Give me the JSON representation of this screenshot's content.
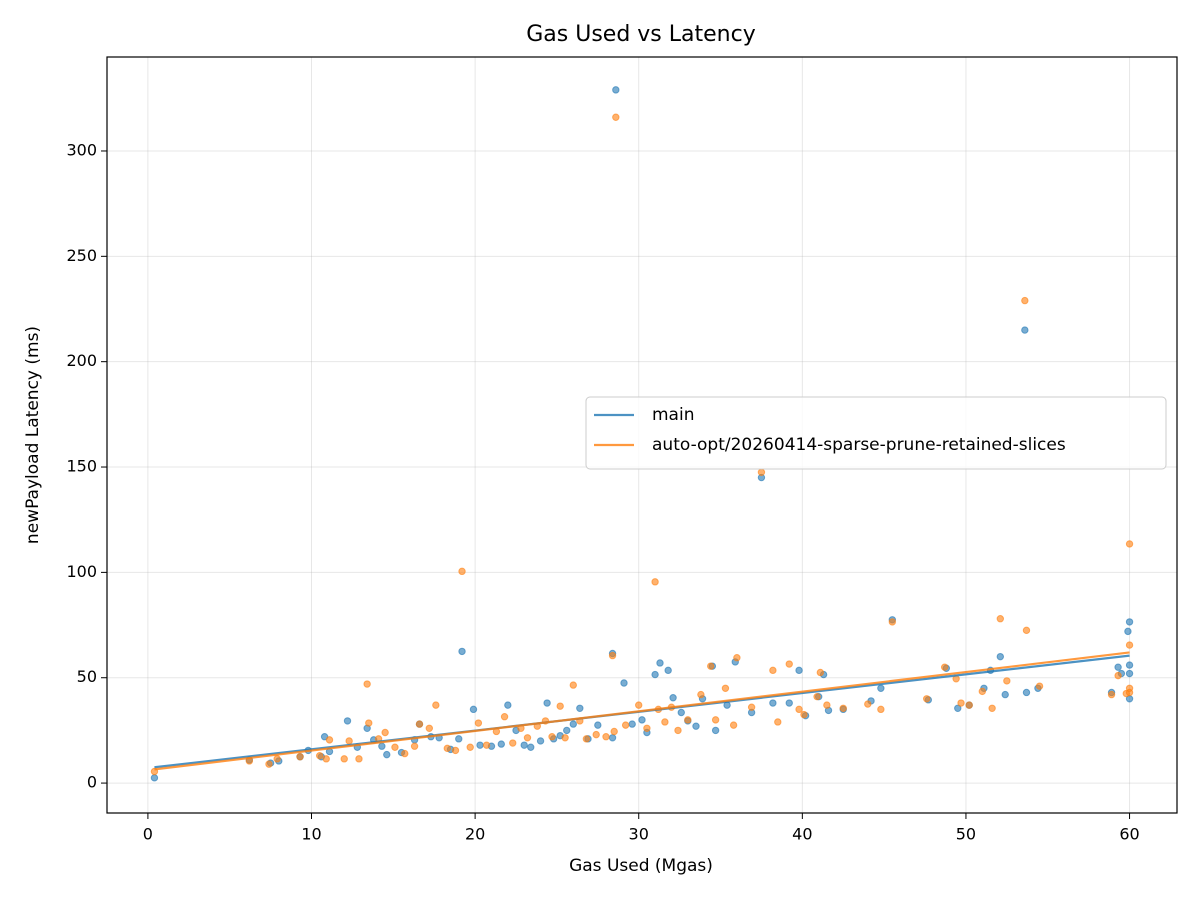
{
  "chart_data": {
    "type": "scatter",
    "title": "Gas Used vs Latency",
    "x_label": "Gas Used (Mgas)",
    "y_label": "newPayload Latency (ms)",
    "xlim": [
      -2.5,
      62.9
    ],
    "ylim": [
      -14.2,
      344.6
    ],
    "xticks": [
      0,
      10,
      20,
      30,
      40,
      50,
      60
    ],
    "yticks": [
      0,
      50,
      100,
      150,
      200,
      250,
      300
    ],
    "grid": true,
    "legend": "center right",
    "series": [
      {
        "name": "main",
        "color": "#1f77b4",
        "x": [
          0.4,
          6.2,
          7.5,
          8,
          9.3,
          9.8,
          10.6,
          10.8,
          11.1,
          12.2,
          12.8,
          13.4,
          13.8,
          14.3,
          14.6,
          15.5,
          16.3,
          16.6,
          17.3,
          17.8,
          18.5,
          19.0,
          19.2,
          19.9,
          20.3,
          21.0,
          21.6,
          22.0,
          22.5,
          23.0,
          23.4,
          24.0,
          24.4,
          24.8,
          25.2,
          25.6,
          26.0,
          26.4,
          26.9,
          27.5,
          28.4,
          28.4,
          28.6,
          29.1,
          29.6,
          30.2,
          30.5,
          31.0,
          31.3,
          31.8,
          32.1,
          32.6,
          33.0,
          33.5,
          33.9,
          34.5,
          34.7,
          35.4,
          35.9,
          36.9,
          37.5,
          38.2,
          39.2,
          39.8,
          40.2,
          41.0,
          41.3,
          41.6,
          42.5,
          44.2,
          44.8,
          45.5,
          47.7,
          48.8,
          49.5,
          50.2,
          51.1,
          51.5,
          52.1,
          52.4,
          53.6,
          53.7,
          54.4,
          58.9,
          59.3,
          59.5,
          59.9,
          60.0,
          60.0,
          60.0,
          60.0
        ],
        "values": [
          2.5,
          11,
          9.5,
          10.5,
          12.5,
          15.5,
          12.5,
          22,
          15,
          29.5,
          17,
          26,
          20.5,
          17.5,
          13.5,
          14.5,
          20.5,
          28,
          22,
          21.5,
          16,
          21,
          62.5,
          35,
          18,
          17.5,
          18.5,
          37,
          25,
          18,
          17,
          20,
          38,
          21,
          22.5,
          25,
          28,
          35.5,
          21,
          27.5,
          61.5,
          21.5,
          329,
          47.5,
          28,
          30,
          24,
          51.5,
          57,
          53.5,
          40.5,
          33.5,
          29.5,
          27,
          40,
          55.5,
          25,
          37,
          57.5,
          33.5,
          145,
          38,
          38,
          53.5,
          32,
          41,
          51.5,
          34.5,
          35,
          39,
          45,
          77.5,
          39.5,
          54.5,
          35.5,
          37,
          45,
          53.5,
          60,
          42,
          215,
          43,
          45,
          43,
          55,
          52,
          72,
          76.5,
          56,
          40,
          52
        ],
        "trend": {
          "x": [
            0.4,
            60
          ],
          "values": [
            7.5,
            60.5
          ]
        }
      },
      {
        "name": "auto-opt/20260414-sparse-prune-retained-slices",
        "color": "#ff7f0e",
        "x": [
          0.4,
          6.2,
          7.4,
          7.9,
          9.3,
          10.5,
          10.9,
          11.1,
          12.0,
          12.3,
          12.9,
          13.4,
          13.5,
          14.1,
          14.5,
          15.1,
          15.7,
          16.3,
          16.6,
          17.2,
          17.6,
          18.3,
          18.8,
          19.2,
          19.7,
          20.2,
          20.7,
          21.3,
          21.8,
          22.3,
          22.8,
          23.2,
          23.8,
          24.3,
          24.7,
          25.2,
          25.5,
          26.0,
          26.4,
          26.8,
          27.4,
          28.0,
          28.4,
          28.5,
          28.6,
          29.2,
          30.0,
          30.5,
          31.0,
          31.2,
          31.6,
          32.0,
          32.4,
          33.0,
          33.8,
          34.4,
          34.7,
          35.3,
          35.8,
          36.0,
          36.9,
          37.5,
          38.2,
          38.5,
          39.2,
          39.8,
          40.1,
          40.9,
          41.1,
          41.5,
          42.5,
          44.0,
          44.8,
          45.5,
          47.6,
          48.7,
          49.4,
          49.7,
          50.2,
          51.0,
          51.6,
          52.1,
          52.5,
          53.6,
          53.7,
          54.5,
          58.9,
          59.3,
          59.8,
          60.0,
          60.0,
          60.0,
          60.0
        ],
        "values": [
          5.5,
          10.5,
          9,
          11.5,
          12.5,
          13,
          11.5,
          20.5,
          11.5,
          20,
          11.5,
          47,
          28.5,
          21,
          24,
          17,
          14,
          17.5,
          28,
          26,
          37,
          16.5,
          15.5,
          100.5,
          17,
          28.5,
          18,
          24.5,
          31.5,
          19,
          26,
          21.5,
          27,
          29.5,
          22,
          36.5,
          21.5,
          46.5,
          29.5,
          21,
          23,
          22,
          60.5,
          24.5,
          316,
          27.5,
          37,
          26,
          95.5,
          35,
          29,
          36,
          25,
          30,
          42,
          55.5,
          30,
          45,
          27.5,
          59.5,
          36,
          147.5,
          53.5,
          29,
          56.5,
          35,
          32.5,
          41,
          52.5,
          37,
          35.5,
          37.5,
          35,
          76.5,
          40,
          55,
          49.5,
          38,
          37,
          43.5,
          35.5,
          78,
          48.5,
          229,
          72.5,
          46,
          42,
          51,
          42.5,
          113.5,
          65.5,
          45,
          43
        ],
        "trend": {
          "x": [
            0.4,
            60
          ],
          "values": [
            6.5,
            62
          ]
        }
      }
    ]
  }
}
